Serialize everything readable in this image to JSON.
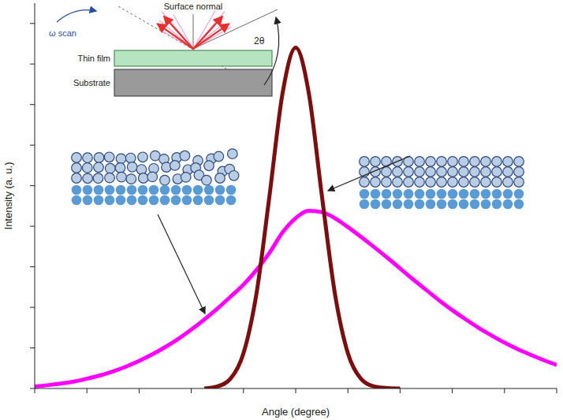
{
  "chart_data": {
    "type": "line",
    "x_label": "Angle (degree)",
    "y_label": "Intensity (a. u.)",
    "annotations": [
      "ω scan",
      "Surface normal",
      "Thin film",
      "Substrate",
      "2θ"
    ],
    "x": [
      0,
      0.25,
      0.5,
      0.75,
      1,
      1.25,
      1.5,
      1.75,
      2,
      2.25,
      2.5,
      2.75,
      3,
      3.25,
      3.5,
      3.75,
      4,
      4.25,
      4.5,
      4.75,
      5,
      5.25,
      5.5,
      5.75,
      6,
      6.25,
      6.5,
      6.75,
      7,
      7.25,
      7.5,
      7.75,
      8,
      8.25,
      8.5,
      8.75,
      9,
      9.25,
      9.5,
      9.75,
      10
    ],
    "series": [
      {
        "color": "#ff00ff",
        "line_style": "solid",
        "values": [
          0.05,
          0.08,
          0.12,
          0.17,
          0.24,
          0.32,
          0.42,
          0.54,
          0.68,
          0.84,
          1.02,
          1.22,
          1.45,
          1.7,
          1.97,
          2.26,
          2.56,
          2.92,
          3.35,
          3.85,
          4.2,
          4.38,
          4.35,
          4.2,
          3.98,
          3.74,
          3.49,
          3.23,
          2.96,
          2.69,
          2.43,
          2.17,
          1.93,
          1.71,
          1.5,
          1.31,
          1.13,
          0.97,
          0.83,
          0.7,
          0.58
        ]
      },
      {
        "color": "#7b0f0f",
        "line_style": "solid",
        "values": [
          null,
          null,
          null,
          null,
          null,
          null,
          null,
          null,
          null,
          null,
          null,
          null,
          null,
          0,
          0.05,
          0.24,
          0.87,
          2.35,
          4.77,
          7.29,
          8.4,
          7.29,
          4.77,
          2.35,
          0.87,
          0.24,
          0.05,
          0.01,
          0,
          null,
          null,
          null,
          null,
          null,
          null,
          null,
          null,
          null,
          null,
          null,
          null
        ]
      }
    ],
    "xlim": [
      0,
      10
    ],
    "xticks": [
      0,
      1,
      2,
      3,
      4,
      5,
      6,
      7,
      8,
      9,
      10
    ],
    "ylim": [
      0,
      9.5
    ],
    "yticks": [
      0,
      1,
      2,
      3,
      4,
      5,
      6,
      7,
      8,
      9
    ],
    "grid": false,
    "tick_labels": false
  }
}
